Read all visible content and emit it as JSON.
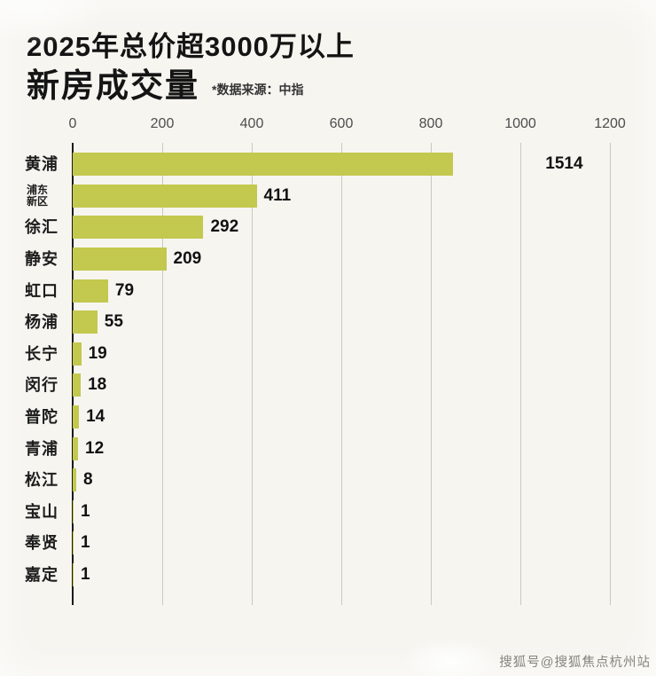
{
  "title": {
    "line1": "2025年总价超3000万以上",
    "line2": "新房成交量",
    "source_note": "*数据来源：中指"
  },
  "watermark": "搜狐号@搜狐焦点杭州站",
  "colors": {
    "background": "#f6f5f0",
    "bar": "#c3c84e",
    "grid": "#c9c8c0",
    "zero_axis": "#1a1a1a",
    "tick_text": "#4d4d4d",
    "value_text": "#111111"
  },
  "chart_data": {
    "type": "bar",
    "orientation": "horizontal",
    "title": "2025年总价超3000万以上新房成交量",
    "source": "*数据来源：中指",
    "xlim": [
      0,
      1200
    ],
    "x_ticks": [
      0,
      200,
      400,
      600,
      800,
      1000,
      1200
    ],
    "grid": true,
    "bar_clip_units": 850,
    "categories": [
      "黄浦",
      "浦东新区",
      "徐汇",
      "静安",
      "虹口",
      "杨浦",
      "长宁",
      "闵行",
      "普陀",
      "青浦",
      "松江",
      "宝山",
      "奉贤",
      "嘉定"
    ],
    "values": [
      1514,
      411,
      292,
      209,
      79,
      55,
      19,
      18,
      14,
      12,
      8,
      1,
      1,
      1
    ]
  }
}
